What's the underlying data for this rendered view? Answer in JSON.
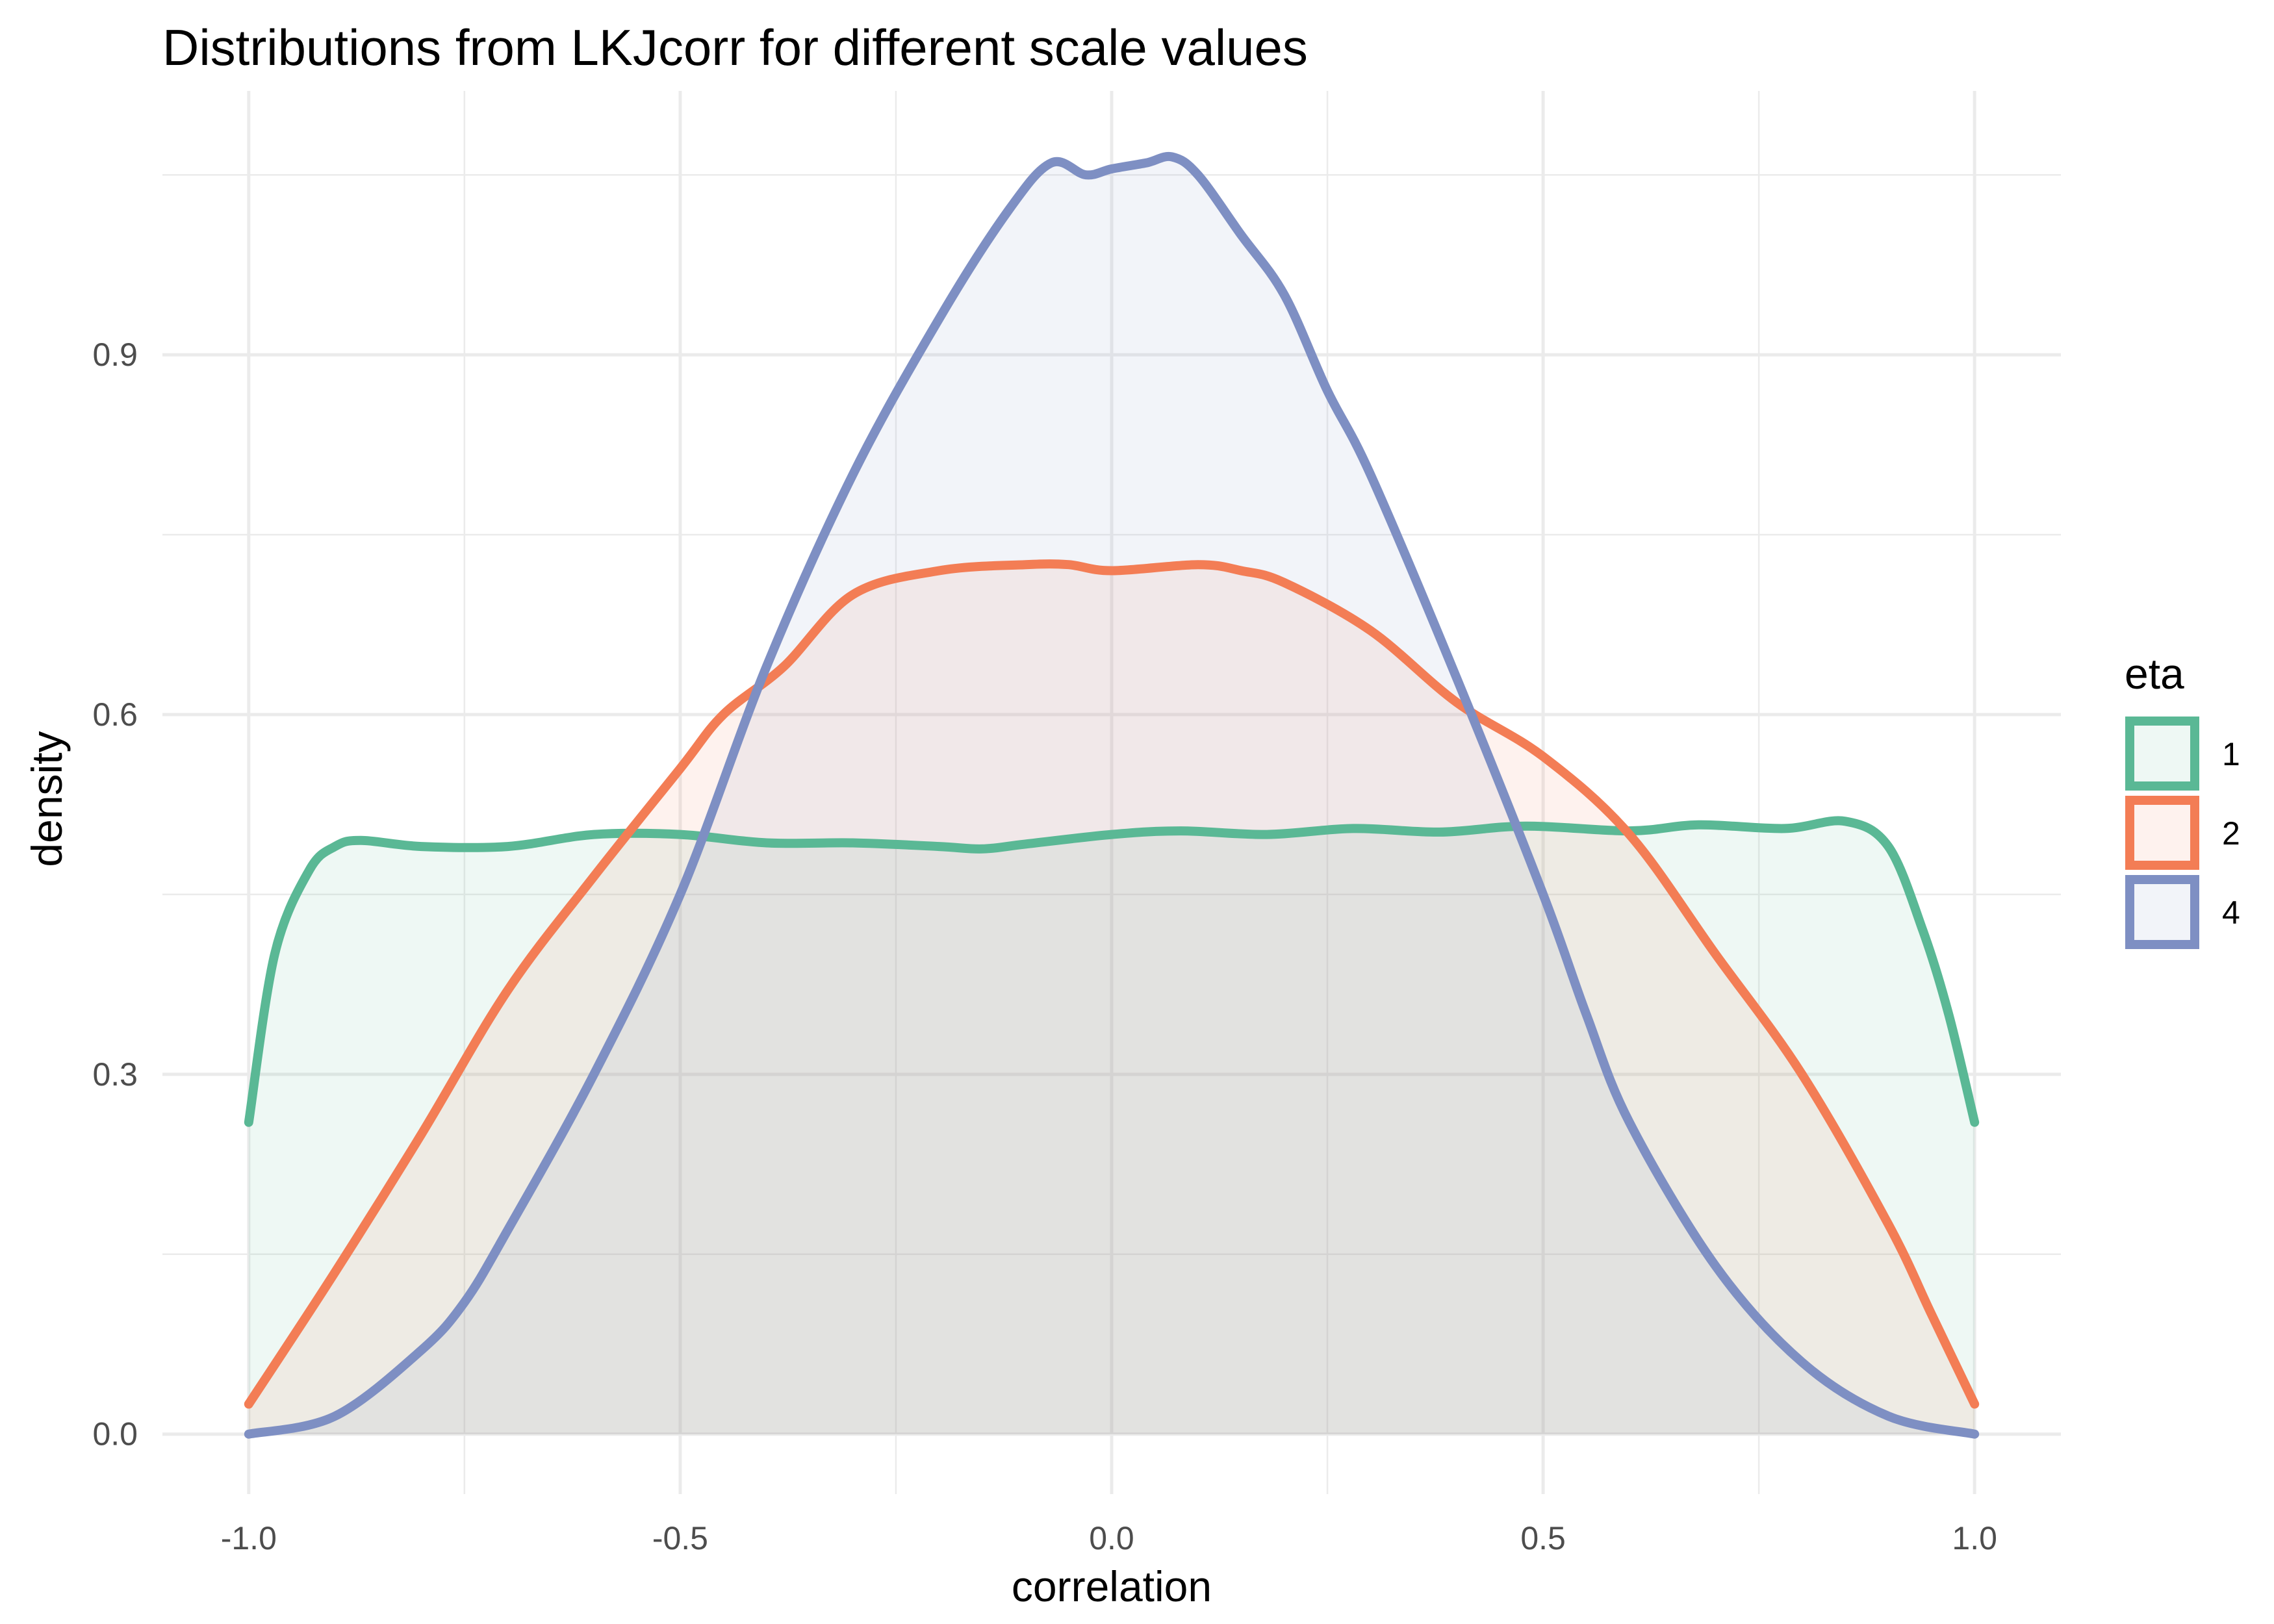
{
  "chart_data": {
    "type": "area",
    "title": "Distributions from LKJcorr for different scale values",
    "xlabel": "correlation",
    "ylabel": "density",
    "xlim": [
      -1.1,
      1.1
    ],
    "ylim": [
      -0.05,
      1.12
    ],
    "x_ticks": [
      -1.0,
      -0.5,
      0.0,
      0.5,
      1.0
    ],
    "x_tick_labels": [
      "-1.0",
      "-0.5",
      "0.0",
      "0.5",
      "1.0"
    ],
    "y_ticks": [
      0.0,
      0.3,
      0.6,
      0.9
    ],
    "y_tick_labels": [
      "0.0",
      "0.3",
      "0.6",
      "0.9"
    ],
    "grid": true,
    "legend": {
      "title": "eta",
      "position": "right"
    },
    "series": [
      {
        "name": "1",
        "color": "#5ab895",
        "x": [
          -1.0,
          -0.97,
          -0.93,
          -0.9,
          -0.87,
          -0.8,
          -0.7,
          -0.6,
          -0.5,
          -0.4,
          -0.3,
          -0.2,
          -0.15,
          -0.1,
          0.0,
          0.08,
          0.18,
          0.28,
          0.38,
          0.48,
          0.6,
          0.68,
          0.78,
          0.85,
          0.9,
          0.94,
          0.97,
          1.0
        ],
        "y": [
          0.26,
          0.4,
          0.47,
          0.49,
          0.495,
          0.49,
          0.49,
          0.5,
          0.5,
          0.493,
          0.493,
          0.49,
          0.488,
          0.492,
          0.5,
          0.503,
          0.5,
          0.505,
          0.502,
          0.507,
          0.503,
          0.508,
          0.505,
          0.511,
          0.49,
          0.42,
          0.35,
          0.26
        ]
      },
      {
        "name": "2",
        "color": "#f37d55",
        "x": [
          -1.0,
          -0.9,
          -0.8,
          -0.7,
          -0.6,
          -0.5,
          -0.45,
          -0.38,
          -0.3,
          -0.2,
          -0.1,
          -0.05,
          0.0,
          0.1,
          0.15,
          0.2,
          0.3,
          0.4,
          0.5,
          0.6,
          0.7,
          0.8,
          0.9,
          0.95,
          1.0
        ],
        "y": [
          0.025,
          0.135,
          0.25,
          0.37,
          0.465,
          0.555,
          0.6,
          0.64,
          0.7,
          0.72,
          0.725,
          0.725,
          0.72,
          0.725,
          0.72,
          0.71,
          0.67,
          0.61,
          0.565,
          0.5,
          0.4,
          0.3,
          0.175,
          0.1,
          0.025
        ]
      },
      {
        "name": "4",
        "color": "#7e8fc3",
        "x": [
          -1.0,
          -0.9,
          -0.8,
          -0.75,
          -0.7,
          -0.6,
          -0.5,
          -0.4,
          -0.3,
          -0.2,
          -0.12,
          -0.07,
          -0.03,
          0.0,
          0.04,
          0.07,
          0.1,
          0.15,
          0.2,
          0.25,
          0.3,
          0.4,
          0.5,
          0.55,
          0.6,
          0.7,
          0.8,
          0.9,
          1.0
        ],
        "y": [
          0.0,
          0.015,
          0.07,
          0.11,
          0.17,
          0.3,
          0.45,
          0.64,
          0.8,
          0.93,
          1.02,
          1.06,
          1.05,
          1.055,
          1.06,
          1.065,
          1.05,
          1.0,
          0.95,
          0.87,
          0.8,
          0.63,
          0.45,
          0.35,
          0.26,
          0.14,
          0.06,
          0.015,
          0.0
        ]
      }
    ]
  }
}
